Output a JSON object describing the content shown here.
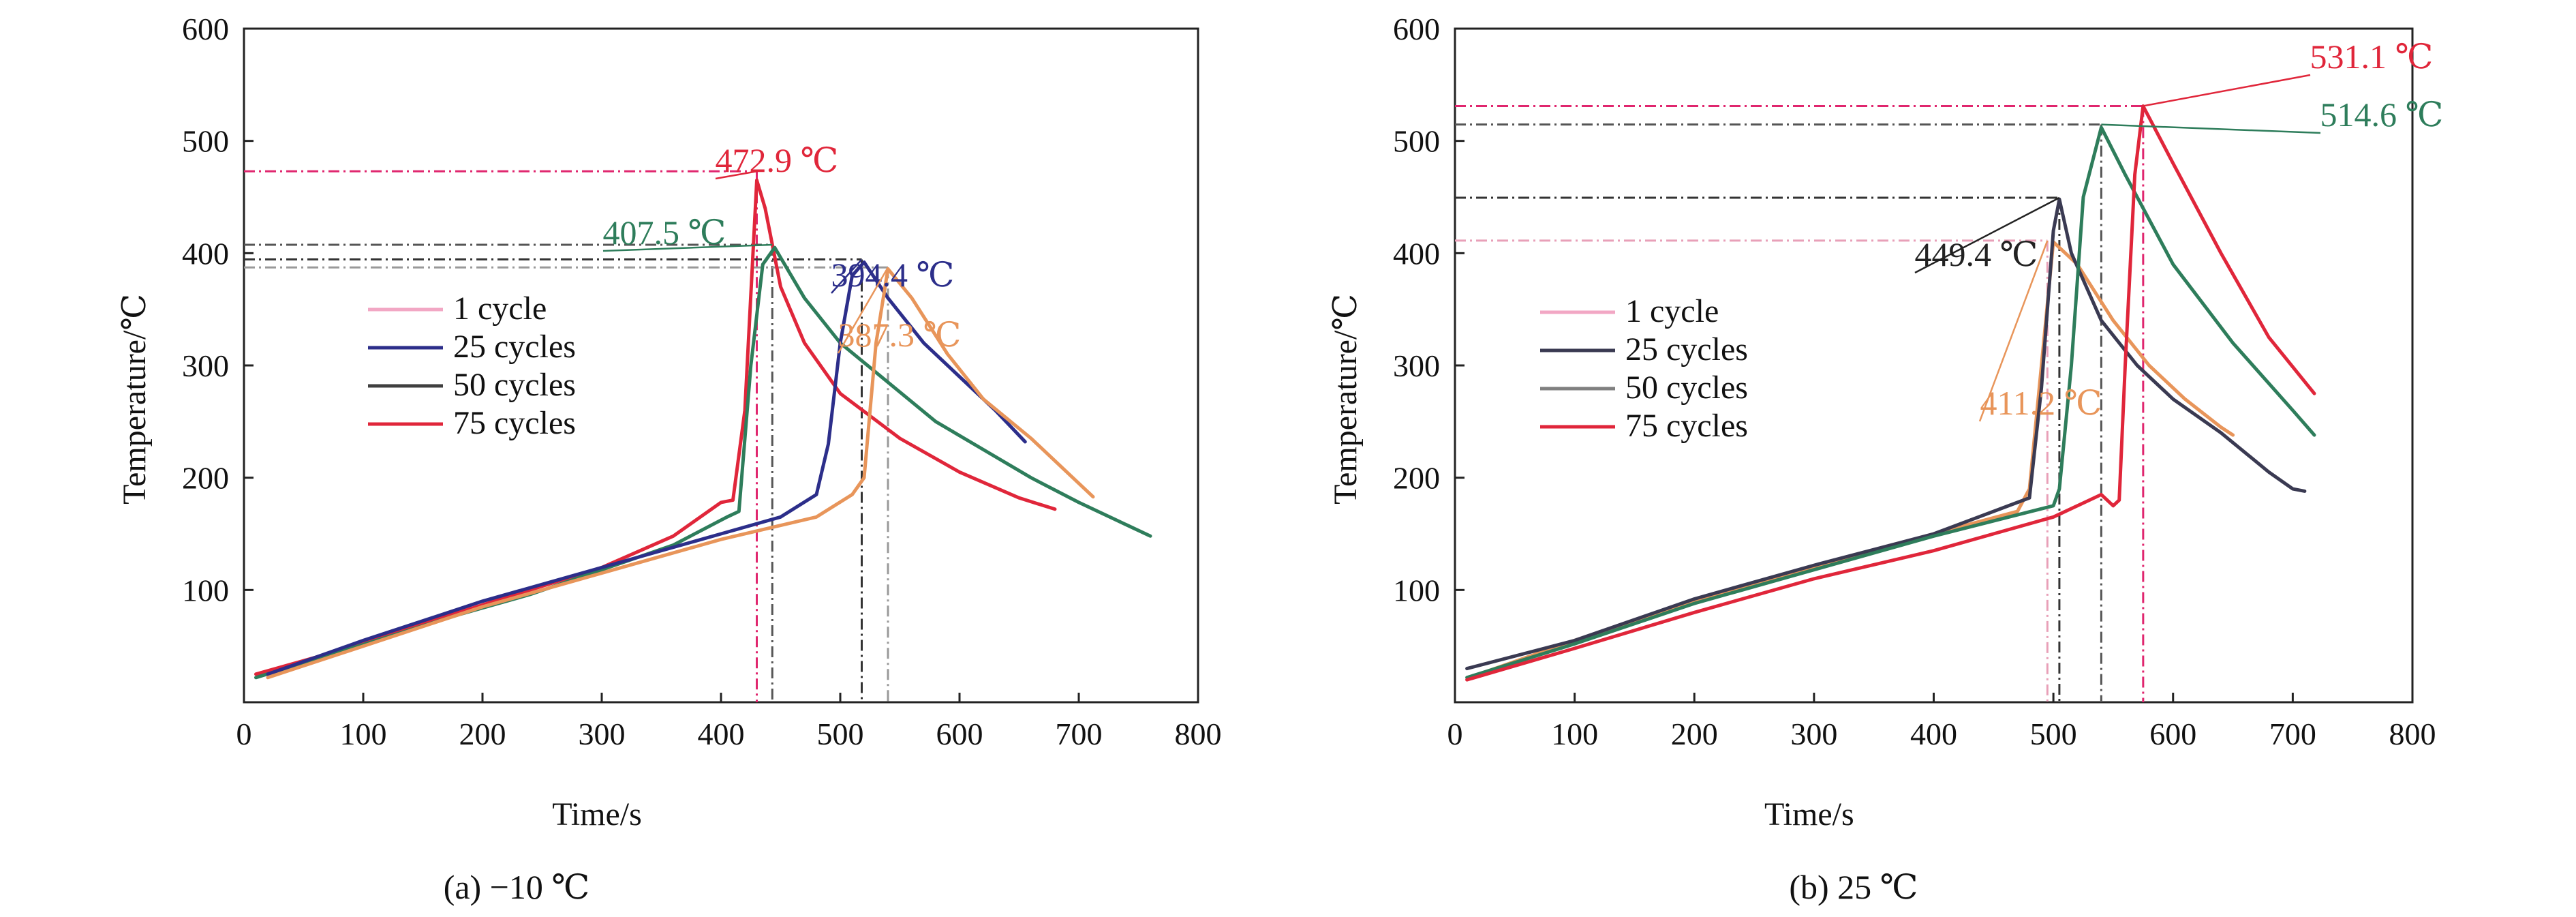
{
  "chart_data": [
    {
      "type": "line",
      "caption": "(a) −10 ℃",
      "xlabel": "Time/s",
      "ylabel": "Temperature/℃",
      "xlim": [
        0,
        800
      ],
      "ylim": [
        0,
        600
      ],
      "xticks": [
        0,
        100,
        200,
        300,
        400,
        500,
        600,
        700,
        800
      ],
      "yticks": [
        100,
        200,
        300,
        400,
        500,
        600
      ],
      "ytick_labels": [
        "100",
        "200",
        "300",
        "400",
        "500",
        "600"
      ],
      "grid": false,
      "legend": {
        "placement": "center-left",
        "entries": [
          {
            "label": "1 cycle",
            "color": "#f2a7c4"
          },
          {
            "label": "25 cycles",
            "color": "#2c2e8a"
          },
          {
            "label": "50 cycles",
            "color": "#3f3f3f"
          },
          {
            "label": "75 cycles",
            "color": "#e0263a"
          }
        ]
      },
      "series": [
        {
          "color": "#e0263a",
          "x": [
            10,
            60,
            120,
            180,
            240,
            300,
            360,
            400,
            410,
            420,
            430,
            437,
            450,
            470,
            500,
            550,
            600,
            650,
            680
          ],
          "y": [
            25,
            40,
            60,
            80,
            100,
            120,
            148,
            178,
            180,
            260,
            465,
            440,
            370,
            320,
            275,
            235,
            205,
            182,
            172
          ]
        },
        {
          "color": "#2e7d5b",
          "x": [
            10,
            60,
            120,
            180,
            240,
            300,
            360,
            405,
            415,
            425,
            435,
            445,
            470,
            500,
            540,
            580,
            620,
            660,
            700,
            740,
            760
          ],
          "y": [
            22,
            38,
            58,
            78,
            96,
            118,
            140,
            165,
            170,
            300,
            390,
            405,
            360,
            320,
            285,
            250,
            225,
            200,
            178,
            158,
            148
          ]
        },
        {
          "color": "#2c2e8a",
          "x": [
            20,
            100,
            200,
            300,
            400,
            450,
            480,
            490,
            500,
            510,
            520,
            540,
            570,
            600,
            630,
            655
          ],
          "y": [
            25,
            55,
            90,
            120,
            150,
            165,
            185,
            230,
            320,
            380,
            392,
            360,
            320,
            290,
            260,
            232
          ]
        },
        {
          "color": "#e8955a",
          "x": [
            20,
            100,
            200,
            300,
            400,
            480,
            510,
            520,
            530,
            540,
            560,
            590,
            620,
            660,
            690,
            712
          ],
          "y": [
            22,
            50,
            85,
            115,
            145,
            165,
            185,
            200,
            320,
            386,
            360,
            310,
            270,
            235,
            205,
            183
          ]
        }
      ],
      "peaks": [
        {
          "label": "472.9 ℃",
          "x": 430,
          "y": 472.9,
          "color": "#e0263a",
          "line_color": "#e0266e"
        },
        {
          "label": "407.5 ℃",
          "x": 443,
          "y": 407.5,
          "color": "#2e7d5b",
          "line_color": "#555555"
        },
        {
          "label": "394.4 ℃",
          "x": 518,
          "y": 394.4,
          "color": "#2c2e8a",
          "line_color": "#333333"
        },
        {
          "label": "387.3 ℃",
          "x": 540,
          "y": 387.3,
          "color": "#e8955a",
          "line_color": "#999999"
        }
      ]
    },
    {
      "type": "line",
      "caption": "(b) 25 ℃",
      "xlabel": "Time/s",
      "ylabel": "Temperature/℃",
      "xlim": [
        0,
        800
      ],
      "ylim": [
        0,
        600
      ],
      "xticks": [
        0,
        100,
        200,
        300,
        400,
        500,
        600,
        700,
        800
      ],
      "yticks": [
        100,
        200,
        300,
        400,
        500,
        600
      ],
      "ytick_labels": [
        "100",
        "200",
        "300",
        "400",
        "500",
        "600"
      ],
      "grid": false,
      "legend": {
        "placement": "center-left",
        "entries": [
          {
            "label": "1 cycle",
            "color": "#f2a7c4"
          },
          {
            "label": "25 cycles",
            "color": "#3a3a52"
          },
          {
            "label": "50 cycles",
            "color": "#808080"
          },
          {
            "label": "75 cycles",
            "color": "#e0263a"
          }
        ]
      },
      "series": [
        {
          "color": "#e8955a",
          "x": [
            20,
            100,
            200,
            300,
            400,
            470,
            480,
            490,
            500,
            520,
            550,
            580,
            610,
            640,
            650
          ],
          "y": [
            25,
            55,
            90,
            120,
            150,
            170,
            190,
            300,
            410,
            390,
            340,
            300,
            270,
            245,
            238
          ]
        },
        {
          "color": "#3a3a52",
          "x": [
            10,
            100,
            200,
            300,
            400,
            470,
            480,
            490,
            500,
            505,
            515,
            540,
            570,
            600,
            640,
            680,
            700,
            710
          ],
          "y": [
            30,
            55,
            92,
            122,
            150,
            178,
            182,
            280,
            420,
            448,
            400,
            340,
            300,
            270,
            240,
            205,
            190,
            188
          ]
        },
        {
          "color": "#2e7d5b",
          "x": [
            10,
            100,
            200,
            300,
            400,
            500,
            505,
            515,
            525,
            540,
            560,
            600,
            650,
            700,
            718
          ],
          "y": [
            22,
            52,
            88,
            118,
            148,
            175,
            190,
            300,
            450,
            512,
            470,
            390,
            320,
            260,
            238
          ]
        },
        {
          "color": "#e0263a",
          "x": [
            10,
            100,
            200,
            300,
            400,
            500,
            540,
            550,
            555,
            560,
            568,
            575,
            600,
            640,
            680,
            718
          ],
          "y": [
            20,
            48,
            80,
            110,
            135,
            165,
            185,
            175,
            180,
            300,
            470,
            531,
            480,
            400,
            325,
            275
          ]
        }
      ],
      "peaks": [
        {
          "label": "531.1 ℃",
          "x": 575,
          "y": 531.1,
          "color": "#e0263a",
          "line_color": "#e0266e"
        },
        {
          "label": "514.6 ℃",
          "x": 540,
          "y": 514.6,
          "color": "#2e7d5b",
          "line_color": "#555555"
        },
        {
          "label": "449.4 ℃",
          "x": 505,
          "y": 449.4,
          "color": "#222222",
          "line_color": "#333333"
        },
        {
          "label": "411.2 ℃",
          "x": 495,
          "y": 411.2,
          "color": "#e8955a",
          "line_color": "#e8a0b8"
        }
      ]
    }
  ]
}
